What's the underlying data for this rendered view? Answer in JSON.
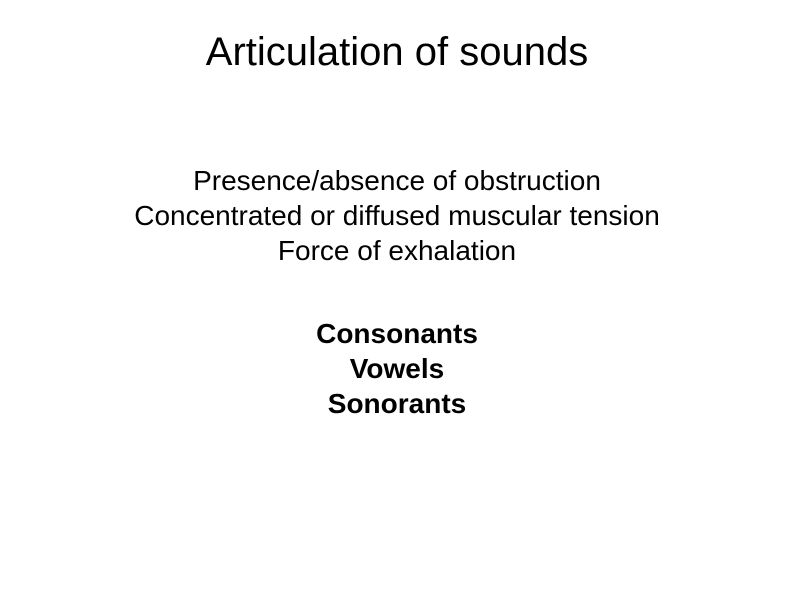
{
  "slide": {
    "title": "Articulation of sounds",
    "criteria": {
      "line1": "Presence/absence of obstruction",
      "line2": "Concentrated or diffused muscular tension",
      "line3": "Force of exhalation"
    },
    "categories": {
      "line1": "Consonants",
      "line2": "Vowels",
      "line3": "Sonorants"
    }
  },
  "styling": {
    "background_color": "#ffffff",
    "text_color": "#000000",
    "title_fontsize": 40,
    "body_fontsize": 28,
    "title_weight": "normal",
    "criteria_weight": "normal",
    "categories_weight": "bold",
    "font_family": "Arial"
  }
}
